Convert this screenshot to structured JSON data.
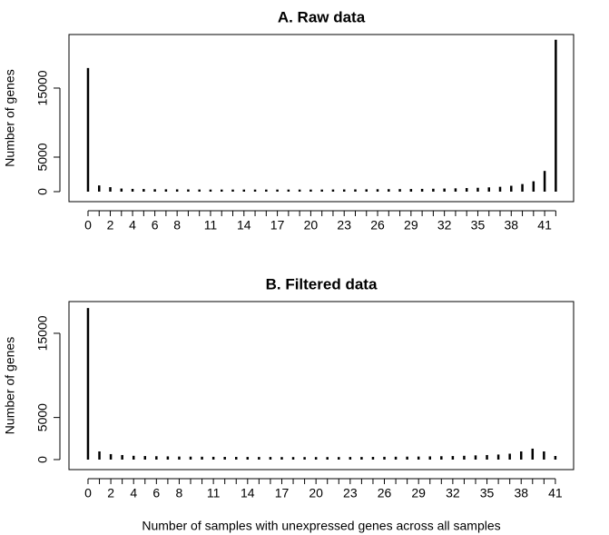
{
  "chart_data": [
    {
      "type": "bar",
      "title": "A. Raw data",
      "y_label": "Number of genes",
      "categories": [
        0,
        null,
        2,
        null,
        4,
        null,
        6,
        null,
        8,
        null,
        null,
        11,
        null,
        null,
        14,
        null,
        null,
        17,
        null,
        null,
        20,
        null,
        null,
        23,
        null,
        null,
        26,
        null,
        null,
        29,
        null,
        null,
        32,
        null,
        null,
        35,
        null,
        null,
        38,
        null,
        null,
        41,
        null
      ],
      "values": [
        17900,
        900,
        650,
        450,
        400,
        380,
        350,
        340,
        330,
        320,
        310,
        300,
        300,
        300,
        300,
        300,
        300,
        300,
        300,
        300,
        300,
        300,
        310,
        320,
        330,
        340,
        350,
        360,
        370,
        380,
        400,
        420,
        450,
        480,
        520,
        560,
        620,
        700,
        850,
        1100,
        1500,
        3000,
        22000
      ],
      "color": "#000000",
      "xlim": [
        -1.71,
        43.6
      ],
      "ylim": [
        -1450,
        22760
      ],
      "yticks": [
        0,
        5000,
        15000
      ]
    },
    {
      "type": "bar",
      "title": "B. Filtered data",
      "y_label": "Number of genes",
      "x_label": "Number of samples with unexpressed genes across all samples",
      "categories": [
        0,
        null,
        2,
        null,
        4,
        null,
        6,
        null,
        8,
        null,
        null,
        11,
        null,
        null,
        14,
        null,
        null,
        17,
        null,
        null,
        20,
        null,
        null,
        23,
        null,
        null,
        26,
        null,
        null,
        29,
        null,
        null,
        32,
        null,
        null,
        35,
        null,
        null,
        38,
        null,
        null,
        41
      ],
      "values": [
        18000,
        970,
        650,
        540,
        450,
        420,
        400,
        380,
        360,
        350,
        340,
        330,
        320,
        320,
        310,
        310,
        310,
        300,
        300,
        300,
        300,
        300,
        300,
        310,
        310,
        320,
        330,
        340,
        350,
        360,
        380,
        400,
        420,
        450,
        500,
        540,
        600,
        700,
        970,
        1300,
        970,
        430
      ],
      "color": "#000000",
      "xlim": [
        -1.67,
        42.6
      ],
      "ylim": [
        -1190,
        18770
      ],
      "yticks": [
        0,
        5000,
        15000
      ]
    }
  ]
}
